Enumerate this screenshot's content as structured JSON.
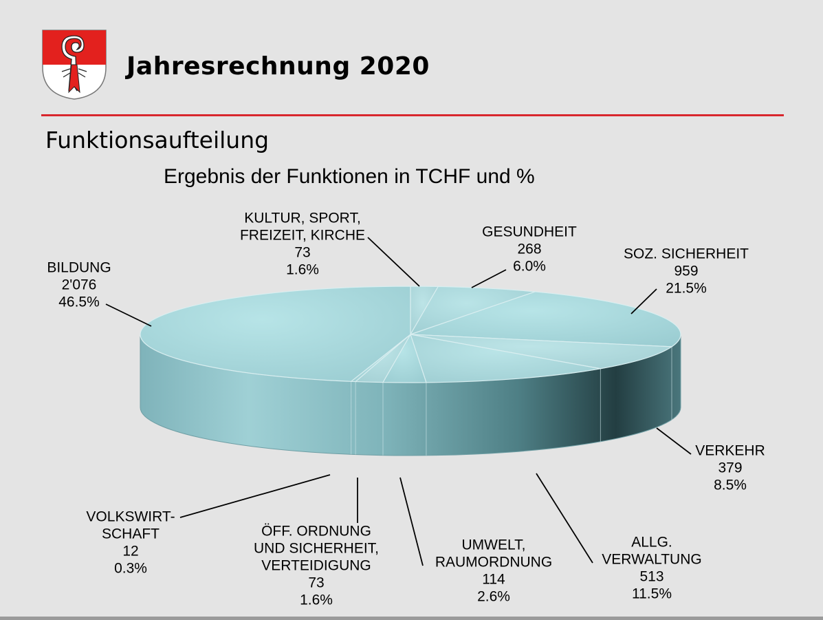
{
  "header": {
    "title": "Jahresrechnung 2020",
    "subtitle": "Funktionsaufteilung",
    "rule_color": "#d8262d",
    "crest_colors": {
      "field": "#e3211e",
      "shield": "#ffffff",
      "staff": "#e3211e"
    }
  },
  "chart_data": {
    "type": "pie",
    "style": "3d",
    "title": "Ergebnis der Funktionen in TCHF und %",
    "unit": "TCHF",
    "slices": [
      {
        "label_lines": [
          "KULTUR, SPORT,",
          "FREIZEIT, KIRCHE"
        ],
        "value": 73,
        "value_text": "73",
        "percent_text": "1.6%"
      },
      {
        "label_lines": [
          "GESUNDHEIT"
        ],
        "value": 268,
        "value_text": "268",
        "percent_text": "6.0%"
      },
      {
        "label_lines": [
          "SOZ. SICHERHEIT"
        ],
        "value": 959,
        "value_text": "959",
        "percent_text": "21.5%"
      },
      {
        "label_lines": [
          "VERKEHR"
        ],
        "value": 379,
        "value_text": "379",
        "percent_text": "8.5%"
      },
      {
        "label_lines": [
          "ALLG.",
          "VERWALTUNG"
        ],
        "value": 513,
        "value_text": "513",
        "percent_text": "11.5%"
      },
      {
        "label_lines": [
          "UMWELT,",
          "RAUMORDNUNG"
        ],
        "value": 114,
        "value_text": "114",
        "percent_text": "2.6%"
      },
      {
        "label_lines": [
          "ÖFF. ORDNUNG",
          "UND SICHERHEIT,",
          "VERTEIDIGUNG"
        ],
        "value": 73,
        "value_text": "73",
        "percent_text": "1.6%"
      },
      {
        "label_lines": [
          "VOLKSWIRT-",
          "SCHAFT"
        ],
        "value": 12,
        "value_text": "12",
        "percent_text": "0.3%"
      },
      {
        "label_lines": [
          "BILDUNG"
        ],
        "value": 2076,
        "value_text": "2'076",
        "percent_text": "46.5%"
      }
    ],
    "colors": {
      "top": "#9ccfd3",
      "side": "#7fb4ba",
      "edge": "#ffffff"
    }
  }
}
